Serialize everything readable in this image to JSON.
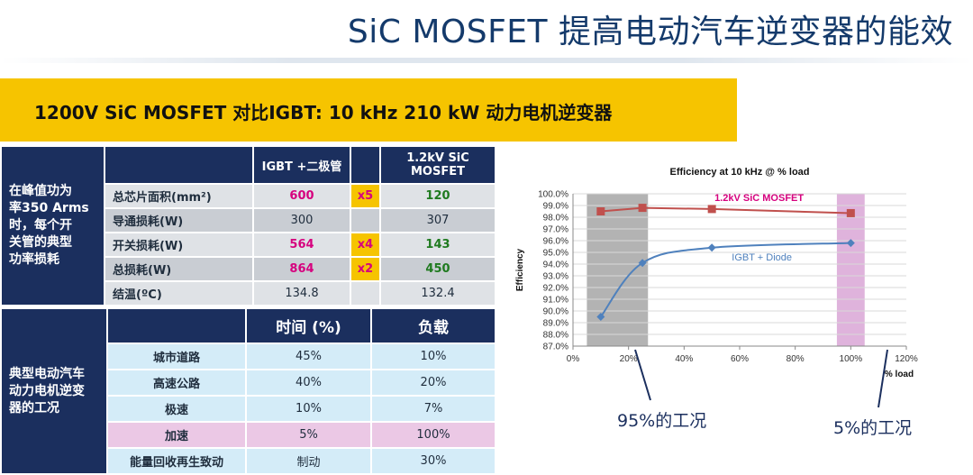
{
  "slide": {
    "title": "SiC MOSFET 提高电动汽车逆变器的能效",
    "banner": "1200V SiC MOSFET 对比IGBT: 10 kHz  210 kW 动力电机逆变器"
  },
  "loss_table": {
    "side_label": "在峰值功为率350 Arms时，每个开关管的典型功率损耗",
    "side_lines": [
      "在峰值功为",
      "率350 Arms",
      "时，每个开",
      "关管的典型",
      "功率损耗"
    ],
    "col_igbt": "IGBT +二极管",
    "col_sic_line1": "1.2kV SiC",
    "col_sic_line2": "MOSFET",
    "rows": [
      {
        "label": "总芯片面积(mm²)",
        "igbt": "600",
        "mult": "x5",
        "sic": "120"
      },
      {
        "label": "导通损耗(W)",
        "igbt": "300",
        "mult": "",
        "sic": "307"
      },
      {
        "label": "开关损耗(W)",
        "igbt": "564",
        "mult": "x4",
        "sic": "143"
      },
      {
        "label": "总损耗(W)",
        "igbt": "864",
        "mult": "x2",
        "sic": "450"
      },
      {
        "label": "结温(ºC)",
        "igbt": "134.8",
        "mult": "",
        "sic": "132.4"
      }
    ]
  },
  "usage_table": {
    "side_lines": [
      "典型电动汽车",
      "动力电机逆变",
      "器的工况"
    ],
    "col_time": "时间 (%)",
    "col_load": "负载",
    "rows": [
      {
        "label": "城市道路",
        "time": "45%",
        "load": "10%"
      },
      {
        "label": "高速公路",
        "time": "40%",
        "load": "20%"
      },
      {
        "label": "极速",
        "time": "10%",
        "load": "7%"
      },
      {
        "label": "加速",
        "time": "5%",
        "load": "100%"
      },
      {
        "label": "能量回收再生致动",
        "time": "制动",
        "load": "30%"
      }
    ]
  },
  "chart_data": {
    "type": "line",
    "title": "Efficiency at 10 kHz @ % load",
    "xlabel": "% load",
    "ylabel": "Efficiency",
    "xlim": [
      0,
      120
    ],
    "ylim": [
      87.0,
      100.0
    ],
    "x_ticks": [
      "0%",
      "20%",
      "40%",
      "60%",
      "80%",
      "100%",
      "120%"
    ],
    "y_ticks": [
      "87.0%",
      "88.0%",
      "89.0%",
      "90.0%",
      "91.0%",
      "92.0%",
      "93.0%",
      "94.0%",
      "95.0%",
      "96.0%",
      "97.0%",
      "98.0%",
      "99.0%",
      "100.0%"
    ],
    "series": [
      {
        "name": "1.2kV SiC MOSFET",
        "color": "#c0504d",
        "x": [
          10,
          25,
          50,
          100
        ],
        "y": [
          98.5,
          98.8,
          98.7,
          98.35
        ]
      },
      {
        "name": "IGBT + Diode",
        "color": "#4f81bd",
        "x": [
          10,
          25,
          50,
          100
        ],
        "y": [
          89.5,
          94.1,
          95.4,
          95.8
        ]
      }
    ],
    "shaded_regions": [
      {
        "x_from": 5,
        "x_to": 27,
        "color": "#a6a6a6"
      },
      {
        "x_from": 95,
        "x_to": 105,
        "color": "#d9a6d6"
      }
    ],
    "grid": "horizontal"
  },
  "annotations": {
    "left": "95%的工况",
    "right": "5%的工况"
  }
}
